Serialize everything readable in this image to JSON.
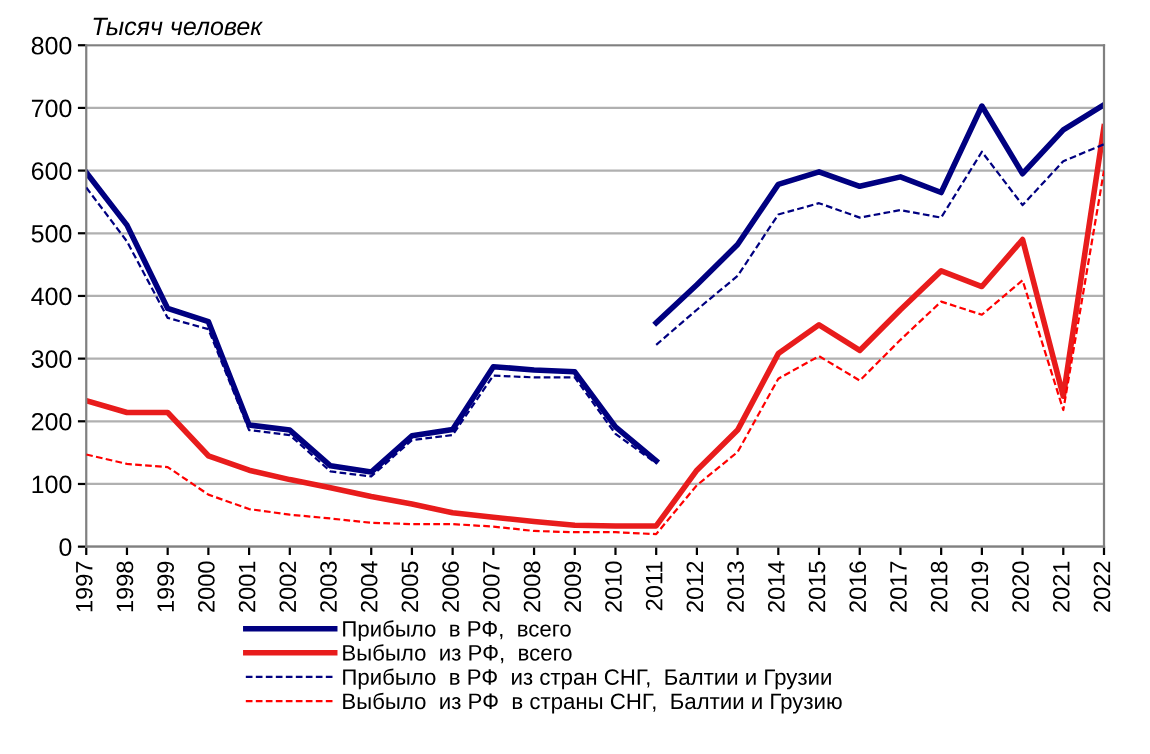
{
  "chart_data": {
    "type": "line",
    "title": "Тысяч человек",
    "xlim": [
      1997,
      2022
    ],
    "xticks": [
      1997,
      1998,
      1999,
      2000,
      2001,
      2002,
      2003,
      2004,
      2005,
      2006,
      2007,
      2008,
      2009,
      2010,
      2011,
      2012,
      2013,
      2014,
      2015,
      2016,
      2017,
      2018,
      2019,
      2020,
      2021,
      2022
    ],
    "ylim": [
      0,
      800
    ],
    "yticks": [
      0,
      100,
      200,
      300,
      400,
      500,
      600,
      700,
      800
    ],
    "grid": "y",
    "legend": "bottom",
    "marker": "none",
    "series": [
      {
        "name": "Прибыло  в РФ,  всего",
        "color": "#000080",
        "line_style": "solid",
        "x": [
          1997,
          1998,
          1999,
          2000,
          2001,
          2002,
          2003,
          2004,
          2005,
          2006,
          2007,
          2008,
          2009,
          2010,
          2011
        ],
        "values": [
          597,
          513,
          380,
          359,
          194,
          186,
          129,
          119,
          177,
          187,
          287,
          282,
          279,
          191,
          137
        ]
      },
      {
        "color": "#000080",
        "line_style": "solid",
        "x": [
          2011,
          2012,
          2013,
          2014,
          2015,
          2016,
          2017,
          2018,
          2019,
          2020,
          2021,
          2022
        ],
        "values": [
          357,
          418,
          482,
          578,
          598,
          575,
          590,
          565,
          703,
          595,
          665,
          705
        ]
      },
      {
        "name": "Выбыло  из РФ,  всего",
        "color": "#e81c1c",
        "line_style": "solid",
        "x": [
          1997,
          1998,
          1999,
          2000,
          2001,
          2002,
          2003,
          2004,
          2005,
          2006,
          2007,
          2008,
          2009,
          2010,
          2011,
          2012,
          2013,
          2014,
          2015,
          2016,
          2017,
          2018,
          2019,
          2020,
          2021,
          2022
        ],
        "values": [
          233,
          214,
          214,
          145,
          122,
          107,
          94,
          80,
          68,
          54,
          47,
          40,
          34,
          33,
          33,
          122,
          186,
          308,
          354,
          313,
          378,
          440,
          415,
          490,
          240,
          670
        ]
      },
      {
        "name": "Прибыло  в РФ  из стран СНГ,  Балтии и Грузии",
        "color": "#000080",
        "line_style": "dashed",
        "x": [
          1997,
          1998,
          1999,
          2000,
          2001,
          2002,
          2003,
          2004,
          2005,
          2006,
          2007,
          2008,
          2009,
          2010,
          2011
        ],
        "values": [
          573,
          487,
          365,
          347,
          186,
          178,
          120,
          112,
          170,
          178,
          273,
          270,
          270,
          180,
          133
        ]
      },
      {
        "color": "#000080",
        "line_style": "dashed",
        "x": [
          2011,
          2012,
          2013,
          2014,
          2015,
          2016,
          2017,
          2018,
          2019,
          2020,
          2021,
          2022
        ],
        "values": [
          322,
          378,
          432,
          530,
          548,
          525,
          537,
          525,
          630,
          545,
          615,
          642
        ]
      },
      {
        "name": "Выбыло  из РФ  в страны СНГ,  Балтии и Грузию",
        "color": "#ff0000",
        "line_style": "dashed",
        "x": [
          1997,
          1998,
          1999,
          2000,
          2001,
          2002,
          2003,
          2004,
          2005,
          2006,
          2007,
          2008,
          2009,
          2010,
          2011,
          2012,
          2013,
          2014,
          2015,
          2016,
          2017,
          2018,
          2019,
          2020,
          2021,
          2022
        ],
        "values": [
          147,
          132,
          127,
          83,
          60,
          51,
          45,
          38,
          36,
          36,
          32,
          25,
          23,
          23,
          20,
          98,
          151,
          268,
          304,
          265,
          330,
          391,
          370,
          425,
          218,
          600
        ]
      }
    ]
  }
}
